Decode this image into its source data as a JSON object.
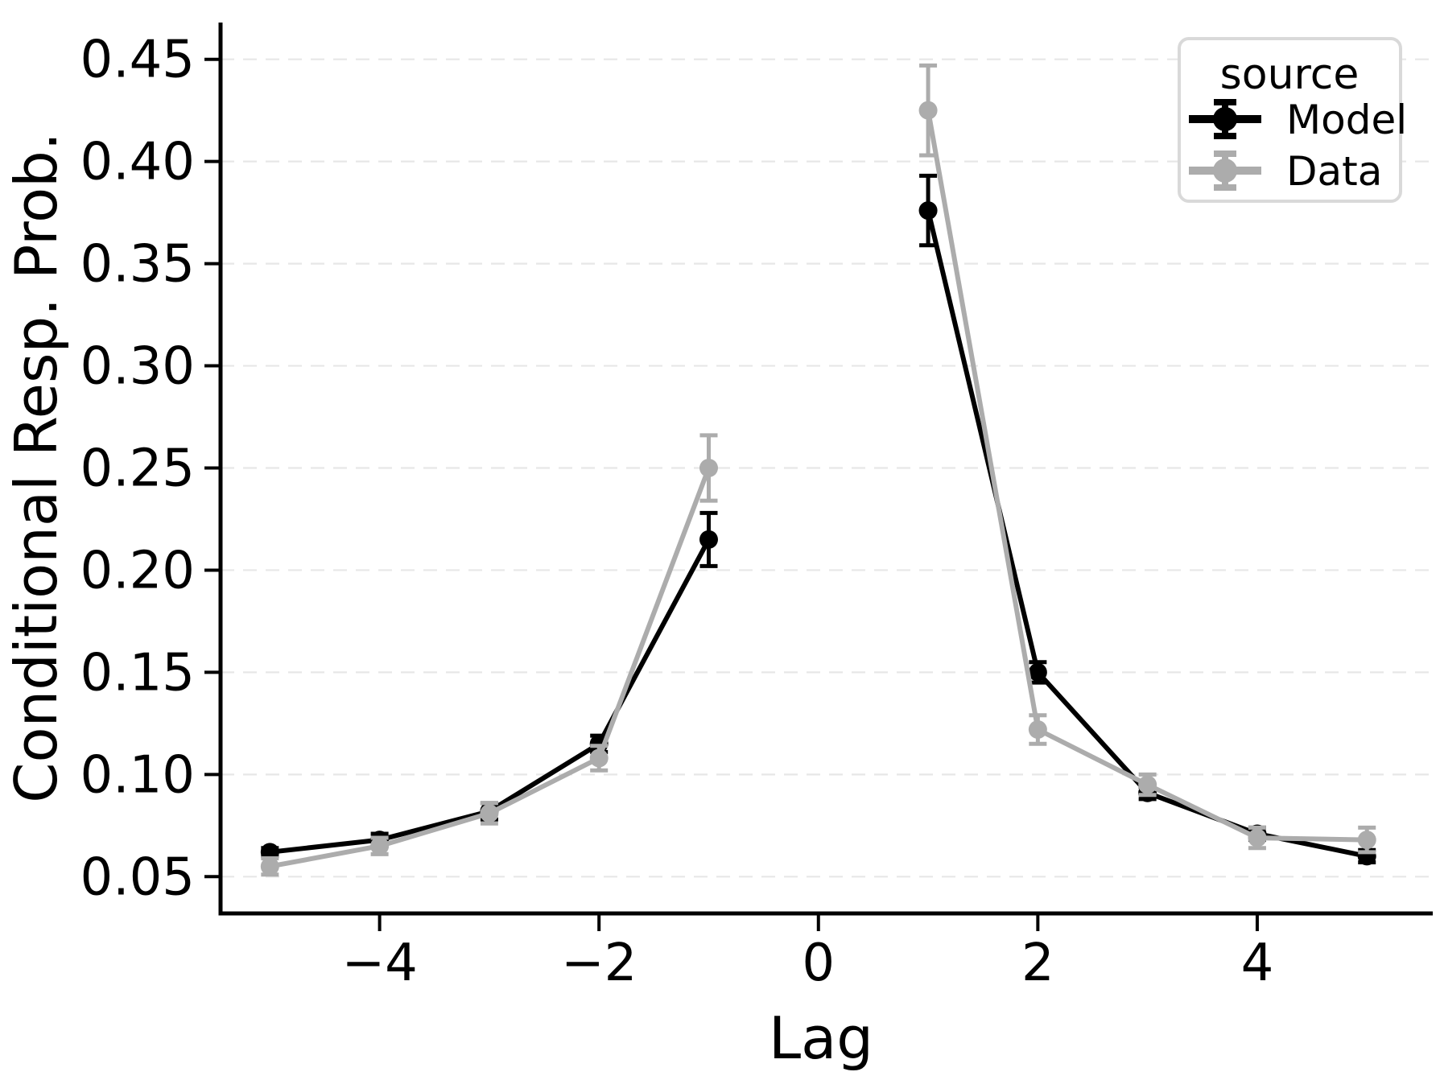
{
  "figure": {
    "background": "#ffffff",
    "text_color": "#000000"
  },
  "chart_data": {
    "type": "line",
    "title": "",
    "xlabel": "Lag",
    "ylabel": "Conditional Resp. Prob.",
    "xlim": [
      -5.45,
      5.6
    ],
    "ylim": [
      0.032,
      0.468
    ],
    "grid": {
      "axis": "y",
      "style": "dashed",
      "color": "#e7e7e7"
    },
    "x_ticks": [
      {
        "value": -4,
        "label": "−4"
      },
      {
        "value": -2,
        "label": "−2"
      },
      {
        "value": 0,
        "label": "0"
      },
      {
        "value": 2,
        "label": "2"
      },
      {
        "value": 4,
        "label": "4"
      }
    ],
    "y_ticks": [
      {
        "value": 0.05,
        "label": "0.05"
      },
      {
        "value": 0.1,
        "label": "0.10"
      },
      {
        "value": 0.15,
        "label": "0.15"
      },
      {
        "value": 0.2,
        "label": "0.20"
      },
      {
        "value": 0.25,
        "label": "0.25"
      },
      {
        "value": 0.3,
        "label": "0.30"
      },
      {
        "value": 0.35,
        "label": "0.35"
      },
      {
        "value": 0.4,
        "label": "0.40"
      },
      {
        "value": 0.45,
        "label": "0.45"
      }
    ],
    "series": [
      {
        "name": "Model",
        "color": "#000000",
        "x": [
          -5,
          -4,
          -3,
          -2,
          -1,
          1,
          2,
          3,
          4,
          5
        ],
        "y": [
          0.062,
          0.068,
          0.082,
          0.115,
          0.215,
          0.376,
          0.15,
          0.091,
          0.071,
          0.06
        ],
        "yerr": [
          0.002,
          0.003,
          0.004,
          0.004,
          0.013,
          0.017,
          0.005,
          0.003,
          0.003,
          0.003
        ]
      },
      {
        "name": "Data",
        "color": "#acacac",
        "x": [
          -5,
          -4,
          -3,
          -2,
          -1,
          1,
          2,
          3,
          4,
          5
        ],
        "y": [
          0.055,
          0.065,
          0.081,
          0.108,
          0.25,
          0.425,
          0.122,
          0.095,
          0.069,
          0.068
        ],
        "yerr": [
          0.004,
          0.004,
          0.005,
          0.006,
          0.016,
          0.022,
          0.007,
          0.005,
          0.005,
          0.006
        ]
      }
    ],
    "legend": {
      "title": "source",
      "position": "upper right",
      "entries": [
        "Model",
        "Data"
      ],
      "border_color": "#d9d9d9",
      "background": "#ffffff"
    }
  }
}
